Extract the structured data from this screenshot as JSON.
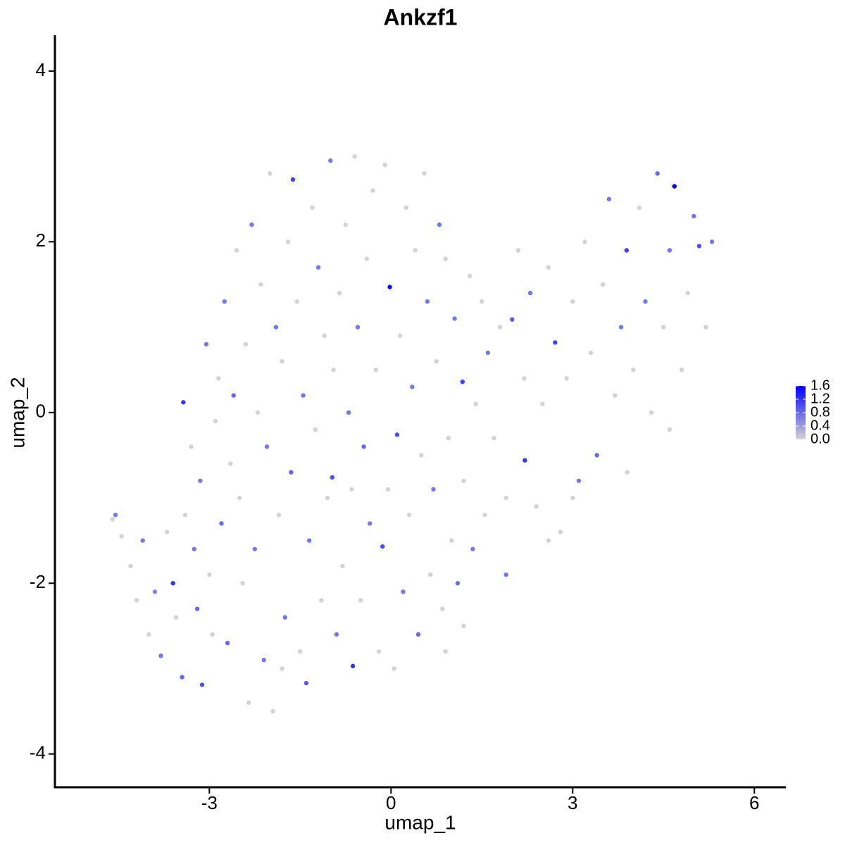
{
  "chart_data": {
    "type": "scatter",
    "title": "Ankzf1",
    "x_label": "umap_1",
    "y_label": "umap_2",
    "xlim": [
      -5.55,
      6.52
    ],
    "ylim": [
      -4.39,
      4.42
    ],
    "xticks": [
      -3,
      0,
      3,
      6
    ],
    "yticks": [
      -4,
      -2,
      0,
      2,
      4
    ],
    "low_color": "#d3d3d3",
    "high_color": "#0000ff",
    "clim": [
      0,
      1.6
    ],
    "cticks": [
      {
        "value": 0,
        "label": "0.0"
      },
      {
        "value": 0.4,
        "label": "0.4"
      },
      {
        "value": 0.8,
        "label": "0.8"
      },
      {
        "value": 1.2,
        "label": "1.2"
      },
      {
        "value": 1.6,
        "label": "1.6"
      }
    ],
    "x": [
      -4.6,
      -4.55,
      -4.45,
      -4.3,
      -4.2,
      -4.1,
      -4.0,
      -3.9,
      -3.8,
      -3.7,
      -3.6,
      -3.55,
      -3.45,
      -3.43,
      -3.4,
      -3.3,
      -3.25,
      -3.2,
      -3.15,
      -3.12,
      -3.05,
      -3.0,
      -2.95,
      -2.9,
      -2.85,
      -2.8,
      -2.75,
      -2.7,
      -2.65,
      -2.6,
      -2.55,
      -2.5,
      -2.45,
      -2.4,
      -2.35,
      -2.3,
      -2.25,
      -2.2,
      -2.15,
      -2.1,
      -2.05,
      -2.0,
      -1.95,
      -1.9,
      -1.85,
      -1.8,
      -1.75,
      -1.7,
      -1.65,
      -1.62,
      -1.55,
      -1.5,
      -1.45,
      -1.4,
      -1.35,
      -1.3,
      -1.25,
      -1.2,
      -1.15,
      -1.1,
      -1.05,
      -1.0,
      -0.97,
      -0.95,
      -0.9,
      -0.85,
      -0.8,
      -0.75,
      -0.7,
      -0.65,
      -0.63,
      -0.6,
      -0.55,
      -0.5,
      -0.45,
      -0.4,
      -0.35,
      -0.3,
      -0.25,
      -0.2,
      -0.14,
      -0.1,
      -0.05,
      -0.02,
      0.05,
      0.1,
      0.15,
      0.2,
      0.25,
      0.3,
      0.35,
      0.4,
      0.45,
      0.5,
      0.55,
      0.6,
      0.65,
      0.7,
      0.75,
      0.8,
      0.85,
      0.9,
      0.95,
      1.0,
      1.05,
      1.1,
      1.18,
      1.2,
      1.3,
      1.35,
      1.4,
      1.5,
      1.55,
      1.6,
      1.7,
      1.8,
      1.9,
      2.0,
      2.1,
      2.2,
      2.21,
      2.3,
      2.4,
      2.5,
      2.6,
      2.71,
      2.8,
      2.9,
      3.0,
      3.1,
      3.2,
      3.3,
      3.4,
      3.5,
      3.6,
      3.7,
      3.8,
      3.89,
      4.0,
      4.1,
      4.2,
      4.3,
      4.4,
      4.5,
      4.6,
      4.68,
      4.8,
      4.9,
      5.0,
      5.09,
      5.2,
      5.3,
      4.6,
      3.9,
      3.0,
      2.6,
      1.9,
      1.2,
      0.9,
      -1.8
    ],
    "values": [
      -1.25,
      -1.2,
      -1.45,
      -1.8,
      -2.2,
      -1.5,
      -2.6,
      -2.1,
      -2.85,
      -1.4,
      -2.0,
      -2.4,
      -3.1,
      0.12,
      -1.2,
      -0.4,
      -1.6,
      -2.3,
      -0.8,
      -3.19,
      0.8,
      -1.9,
      -2.6,
      -0.1,
      0.4,
      -1.3,
      1.3,
      -2.7,
      -0.6,
      0.2,
      1.9,
      -1.0,
      -2.0,
      0.8,
      -3.4,
      2.2,
      -1.6,
      0.0,
      1.5,
      -2.9,
      -0.4,
      2.8,
      -3.5,
      1.0,
      -1.2,
      0.6,
      -2.4,
      2.0,
      -0.7,
      2.73,
      1.3,
      -2.8,
      0.2,
      -3.17,
      -1.5,
      2.4,
      -0.2,
      1.7,
      -2.2,
      0.9,
      -1.0,
      2.95,
      -0.76,
      0.5,
      -2.6,
      1.4,
      -1.8,
      2.2,
      0.0,
      -0.9,
      -2.97,
      3.0,
      1.0,
      -2.2,
      -0.4,
      1.8,
      -1.3,
      2.6,
      0.5,
      -2.8,
      -1.57,
      2.9,
      -0.9,
      1.47,
      -3.0,
      -0.26,
      0.9,
      -2.1,
      2.4,
      -1.2,
      0.3,
      1.9,
      -2.6,
      -0.5,
      2.8,
      1.3,
      -1.9,
      -0.9,
      0.6,
      2.2,
      -2.3,
      1.8,
      -0.3,
      -1.5,
      1.1,
      -2.0,
      0.36,
      -0.8,
      1.6,
      -1.6,
      0.1,
      1.3,
      -1.2,
      0.7,
      -0.3,
      1.0,
      -1.0,
      1.09,
      1.9,
      0.4,
      -0.56,
      1.4,
      -1.1,
      0.1,
      1.7,
      0.82,
      -1.4,
      0.4,
      1.3,
      -0.8,
      2.0,
      0.7,
      -0.5,
      1.5,
      2.5,
      0.2,
      1.0,
      1.9,
      0.5,
      2.4,
      1.3,
      0.0,
      2.8,
      1.0,
      1.9,
      2.65,
      0.5,
      1.4,
      2.3,
      1.95,
      1.0,
      2.0,
      -0.2,
      -0.7,
      -1.0,
      -1.5,
      -1.9,
      -2.5,
      -2.8,
      -3.0
    ],
    "color_values": [
      0,
      0.7,
      0,
      0,
      0,
      0.7,
      0,
      0.6,
      0.7,
      0,
      1.2,
      0,
      0.8,
      1.2,
      0,
      0,
      0.7,
      0.8,
      0.7,
      1.0,
      0.7,
      0,
      0,
      0,
      0,
      0.8,
      0.7,
      0.8,
      0,
      0.8,
      0,
      0,
      0,
      0,
      0,
      0.7,
      0.7,
      0,
      0,
      0.7,
      0.7,
      0,
      0,
      0.7,
      0,
      0,
      0.7,
      0,
      0.8,
      1.1,
      0,
      0,
      0.7,
      0.9,
      0.7,
      0,
      0,
      0.7,
      0,
      0,
      0,
      0.7,
      1.0,
      0,
      0.7,
      0,
      0,
      0,
      0.7,
      0,
      1.2,
      0,
      0.7,
      0,
      0.8,
      0,
      0.7,
      0,
      0,
      0,
      1.0,
      0,
      0,
      1.5,
      0,
      1.0,
      0,
      0.7,
      0,
      0,
      0.7,
      0,
      0.8,
      0,
      0,
      0.7,
      0,
      0.7,
      0,
      0.7,
      0,
      0,
      0,
      0,
      0.7,
      0.8,
      1.1,
      0,
      0,
      0.7,
      0,
      0,
      0,
      0.7,
      0,
      0,
      0,
      0.9,
      0,
      0,
      1.2,
      0.7,
      0,
      0,
      0,
      1.1,
      0,
      0,
      0,
      0.7,
      0,
      0,
      0.8,
      0,
      0.7,
      0,
      0.7,
      1.1,
      0,
      0,
      0.7,
      0,
      0.8,
      0,
      0.7,
      1.6,
      0,
      0,
      0.7,
      1.0,
      0,
      0.7,
      0,
      0,
      0,
      0,
      0.7,
      0,
      0,
      0
    ]
  }
}
